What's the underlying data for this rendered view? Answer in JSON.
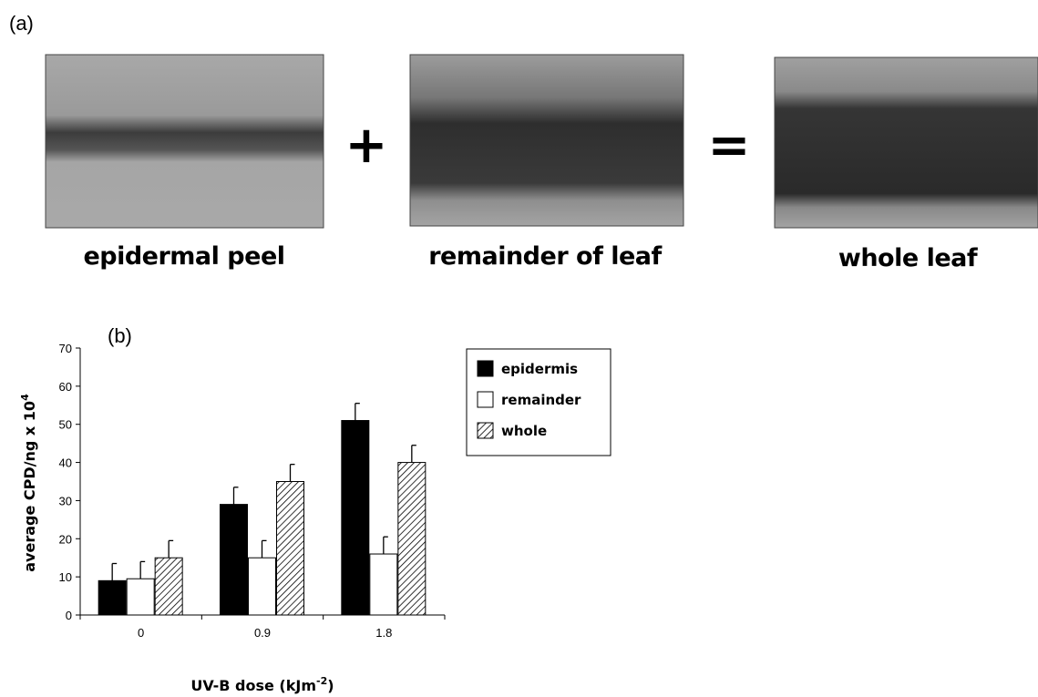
{
  "panel_a": {
    "label": "(a)",
    "images": [
      {
        "caption": "epidermal peel"
      },
      {
        "caption": "remainder of leaf"
      },
      {
        "caption": "whole leaf"
      }
    ],
    "plus": "+",
    "equals": "="
  },
  "chart_data": {
    "type": "bar",
    "panel_label": "(b)",
    "ylabel": {
      "text": "average CPD/ng x 10",
      "sup": "4"
    },
    "xlabel": {
      "text": "UV-B dose (kJm",
      "sup": "-2",
      "after": ")"
    },
    "categories": [
      "0",
      "0.9",
      "1.8"
    ],
    "series": [
      {
        "name": "epidermis",
        "color": "#000000",
        "values": [
          9,
          29,
          51
        ],
        "errors": [
          4.5,
          4.5,
          4.5
        ]
      },
      {
        "name": "remainder",
        "color": "#ffffff",
        "values": [
          9.5,
          15,
          16
        ],
        "errors": [
          4.5,
          4.5,
          4.5
        ]
      },
      {
        "name": "whole",
        "color": "#ffffff",
        "hatch": true,
        "values": [
          15,
          35,
          40
        ],
        "errors": [
          4.5,
          4.5,
          4.5
        ]
      }
    ],
    "ylim": [
      0,
      70
    ],
    "yticks": [
      0,
      10,
      20,
      30,
      40,
      50,
      60,
      70
    ]
  }
}
